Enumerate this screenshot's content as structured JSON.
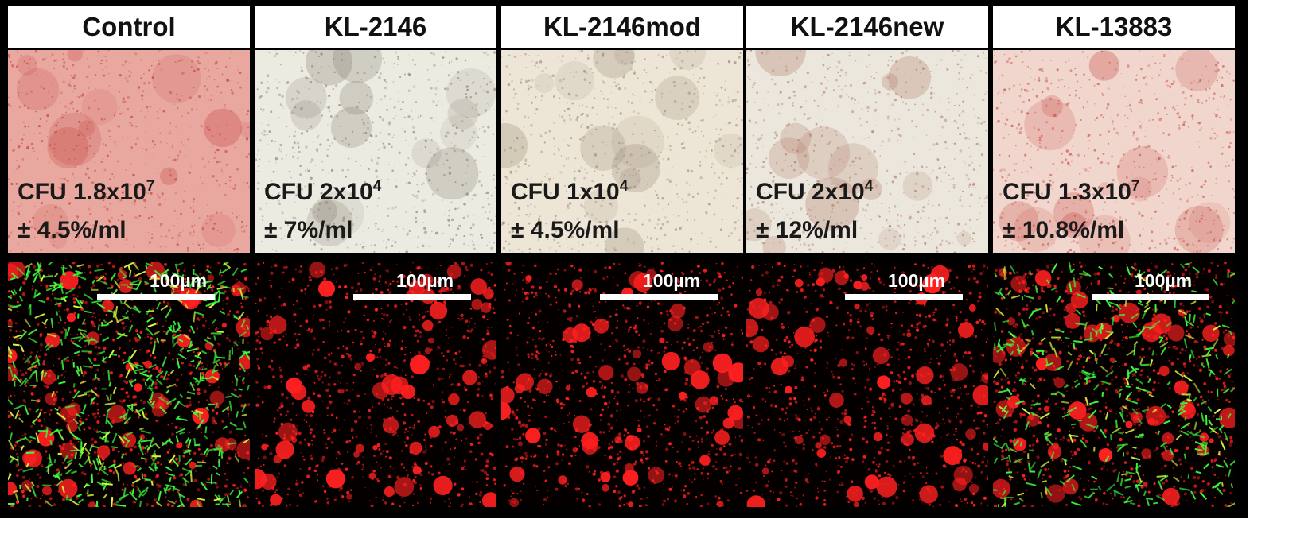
{
  "panels": [
    {
      "label": "Control",
      "cfu_prefix": "CFU 1.8x10",
      "cfu_exp": "7",
      "cfu_error": "± 4.5%/ml",
      "scale": "100µm",
      "bf_bg": "#e8a8a0",
      "bf_dot": "#c4403a",
      "fl_type": "mixed"
    },
    {
      "label": "KL-2146",
      "cfu_prefix": "CFU 2x10",
      "cfu_exp": "4",
      "cfu_error": "± 7%/ml",
      "scale": "100µm",
      "bf_bg": "#ecebe2",
      "bf_dot": "#8a8074",
      "fl_type": "red"
    },
    {
      "label": "KL-2146mod",
      "cfu_prefix": "CFU  1x10",
      "cfu_exp": "4",
      "cfu_error": "± 4.5%/ml",
      "scale": "100µm",
      "bf_bg": "#ede6d6",
      "bf_dot": "#9c8a78",
      "fl_type": "red"
    },
    {
      "label": "KL-2146new",
      "cfu_prefix": "CFU 2x10",
      "cfu_exp": "4",
      "cfu_error": "± 12%/ml",
      "scale": "100µm",
      "bf_bg": "#ebe7dc",
      "bf_dot": "#b07868",
      "fl_type": "red"
    },
    {
      "label": "KL-13883",
      "cfu_prefix": "CFU 1.3x10",
      "cfu_exp": "7",
      "cfu_error": "± 10.8%/ml",
      "scale": "100µm",
      "bf_bg": "#f0d6cc",
      "bf_dot": "#c84a46",
      "fl_type": "mixed"
    }
  ],
  "colors": {
    "border": "#000000",
    "live_stain": "#3cff3c",
    "dead_stain": "#ff2020"
  }
}
